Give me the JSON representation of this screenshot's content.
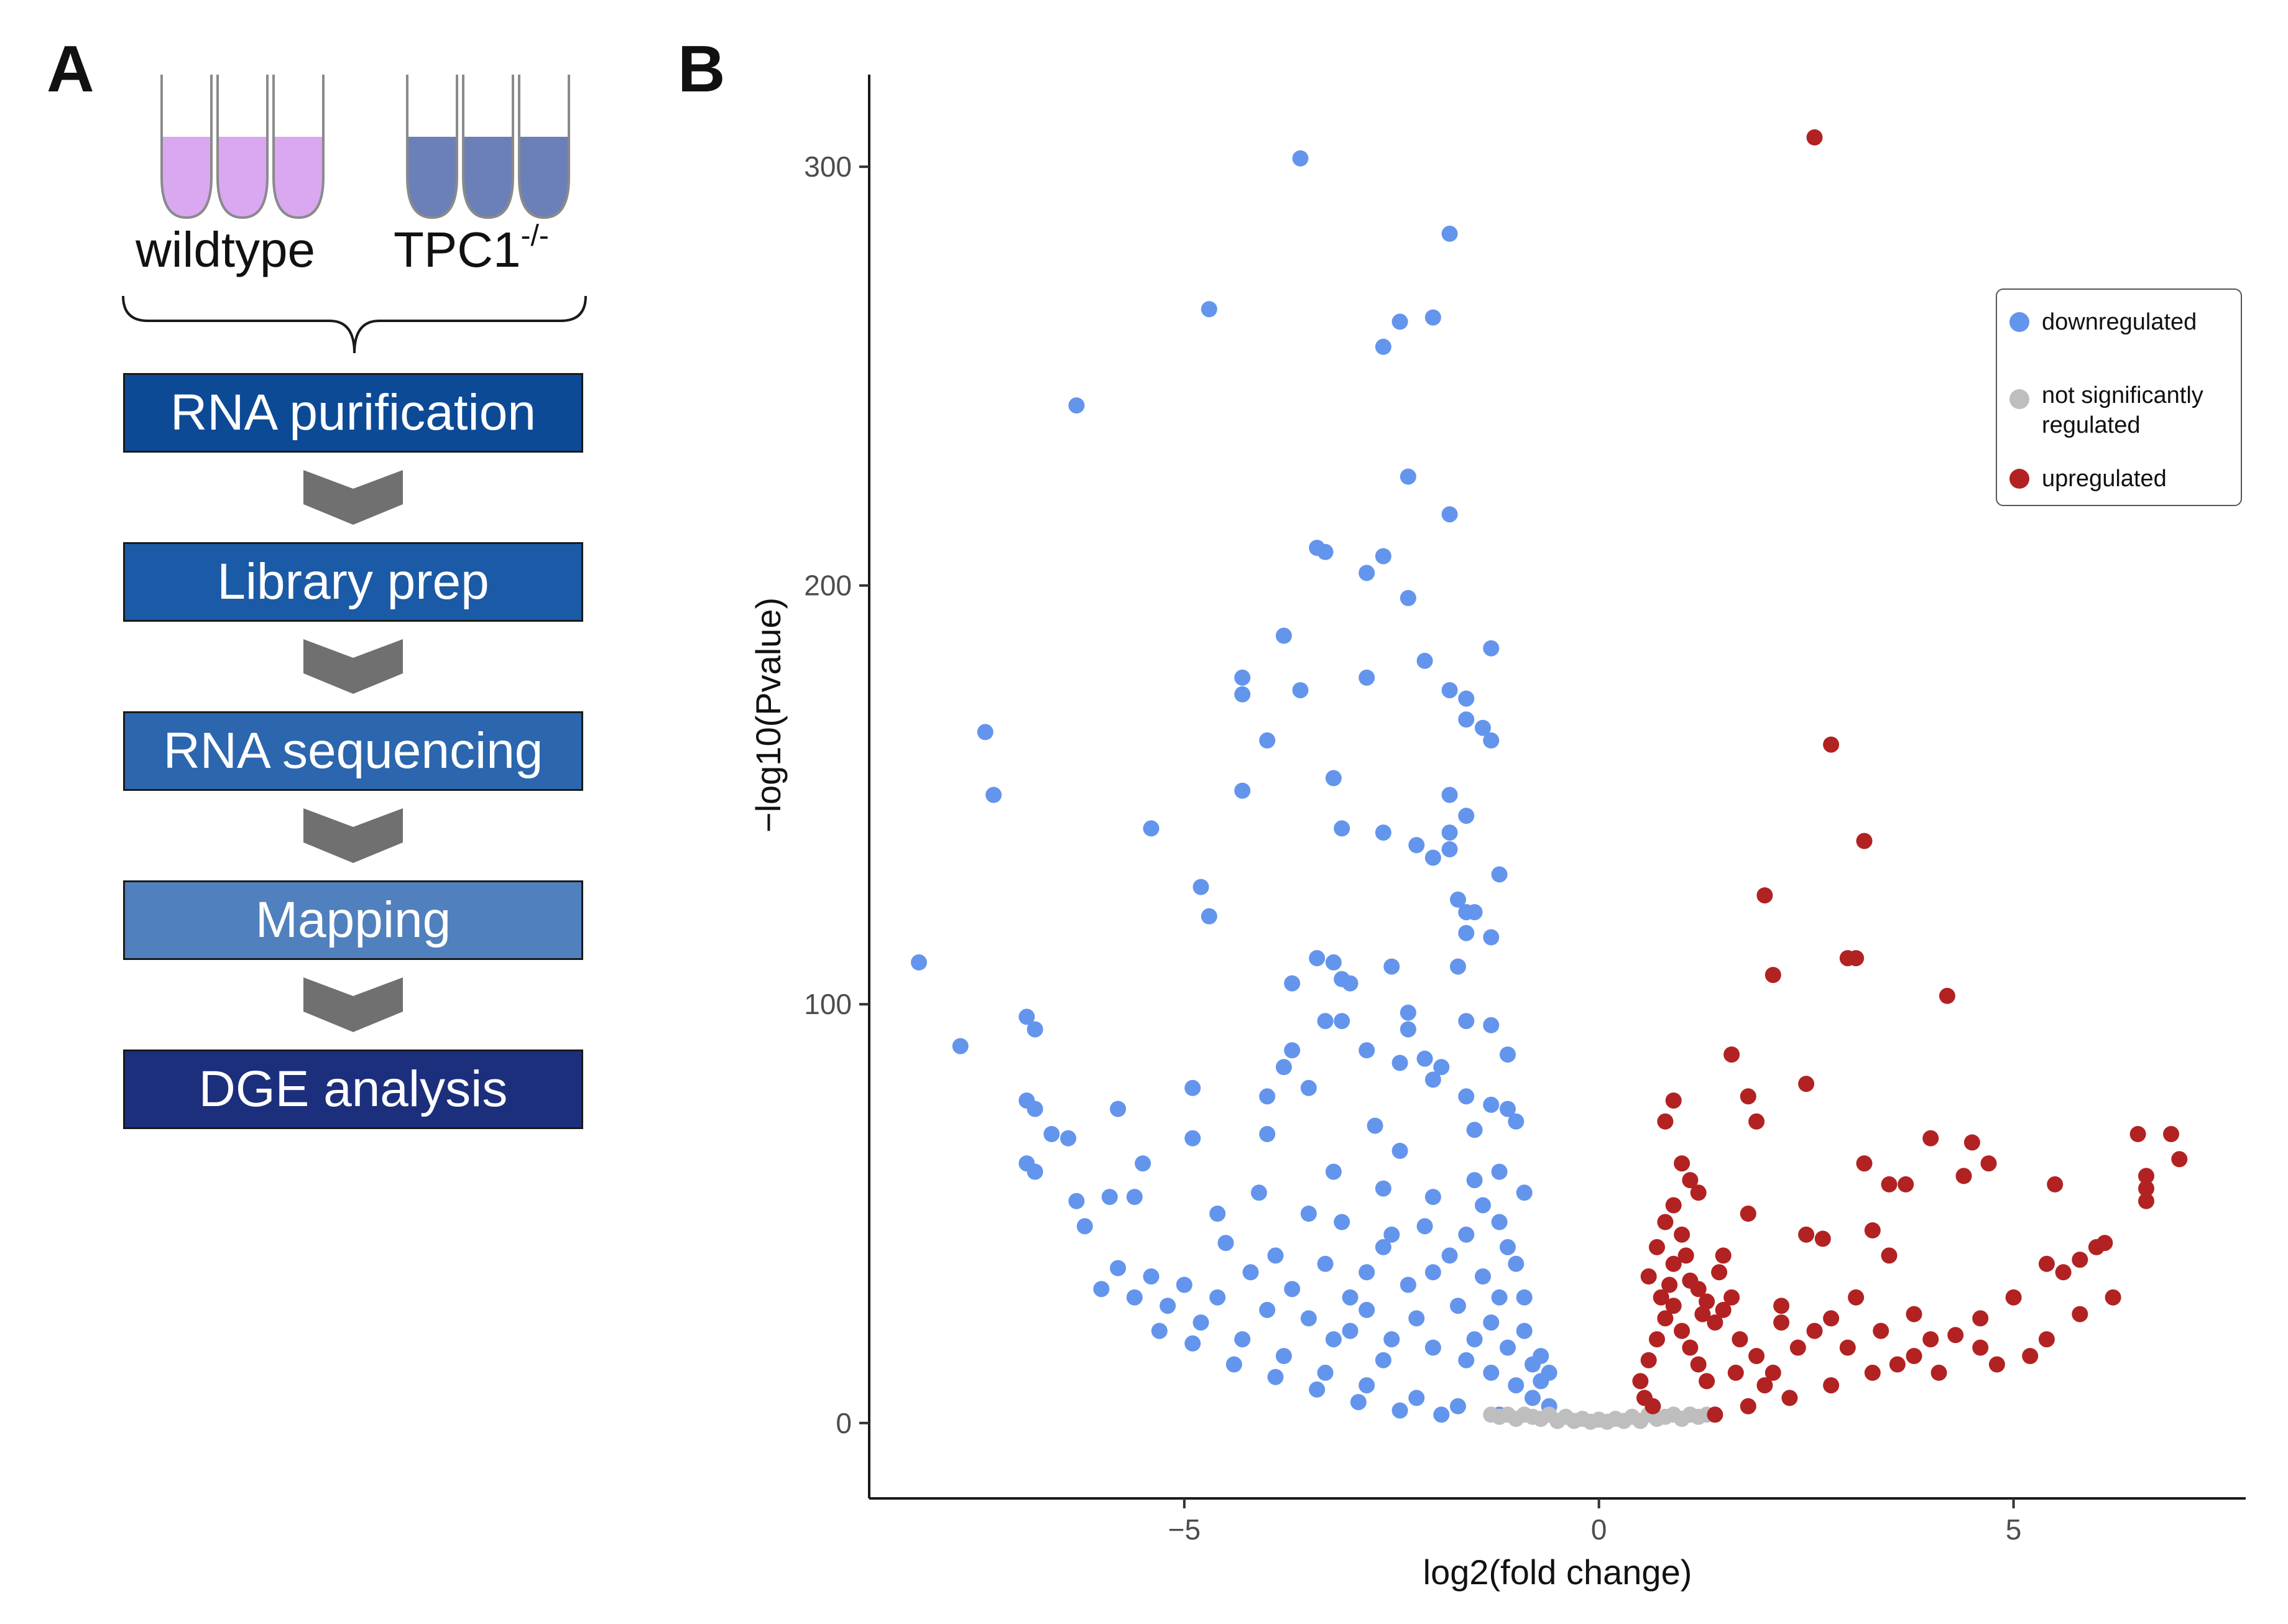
{
  "panel_a": {
    "letter": "A",
    "groups": [
      {
        "label": "wildtype",
        "color": "#d9a8f0"
      },
      {
        "label": "TPC1",
        "superscript": "-/-",
        "color": "#6b80b8"
      }
    ],
    "steps": [
      {
        "label": "RNA purification",
        "color": "#0d4a96"
      },
      {
        "label": "Library prep",
        "color": "#1b5aa6"
      },
      {
        "label": "RNA sequencing",
        "color": "#2b66ae"
      },
      {
        "label": "Mapping",
        "color": "#5080bd"
      },
      {
        "label": "DGE analysis",
        "color": "#1c2f7c"
      }
    ],
    "arrow_color": "#707070"
  },
  "panel_b": {
    "letter": "B",
    "legend": [
      {
        "label": "downregulated",
        "color": "#6495ed"
      },
      {
        "label": "not significantly regulated",
        "line1": "not significantly",
        "line2": "regulated",
        "color": "#bebebe"
      },
      {
        "label": "upregulated",
        "color": "#b22222"
      }
    ]
  },
  "chart_data": {
    "type": "scatter",
    "subtype": "volcano",
    "xlabel": "log2(fold change)",
    "ylabel": "−log10(Pvalue)",
    "xlim": [
      -8.8,
      7.8
    ],
    "ylim": [
      -18,
      322
    ],
    "xticks": [
      -5,
      0,
      5
    ],
    "xtick_labels": [
      "−5",
      "0",
      "5"
    ],
    "yticks": [
      0,
      100,
      200,
      300
    ],
    "ytick_labels": [
      "0",
      "100",
      "200",
      "300"
    ],
    "grid": false,
    "legend_position": "top-right",
    "series": [
      {
        "name": "downregulated",
        "color": "#6495ed",
        "points": [
          [
            -3.6,
            302
          ],
          [
            -1.8,
            284
          ],
          [
            -4.7,
            266
          ],
          [
            -2.4,
            263
          ],
          [
            -2.0,
            264
          ],
          [
            -2.6,
            257
          ],
          [
            -6.3,
            243
          ],
          [
            -2.3,
            226
          ],
          [
            -1.8,
            217
          ],
          [
            -3.3,
            208
          ],
          [
            -3.4,
            209
          ],
          [
            -2.6,
            207
          ],
          [
            -2.8,
            203
          ],
          [
            -2.3,
            197
          ],
          [
            -3.8,
            188
          ],
          [
            -1.3,
            185
          ],
          [
            -2.1,
            182
          ],
          [
            -4.3,
            178
          ],
          [
            -4.3,
            174
          ],
          [
            -3.6,
            175
          ],
          [
            -2.8,
            178
          ],
          [
            -1.6,
            173
          ],
          [
            -1.8,
            175
          ],
          [
            -1.6,
            168
          ],
          [
            -1.4,
            166
          ],
          [
            -1.3,
            163
          ],
          [
            -7.4,
            165
          ],
          [
            -4.0,
            163
          ],
          [
            -3.2,
            154
          ],
          [
            -7.3,
            150
          ],
          [
            -4.3,
            151
          ],
          [
            -1.8,
            150
          ],
          [
            -1.6,
            145
          ],
          [
            -5.4,
            142
          ],
          [
            -3.1,
            142
          ],
          [
            -2.6,
            141
          ],
          [
            -2.2,
            138
          ],
          [
            -2.0,
            135
          ],
          [
            -1.8,
            137
          ],
          [
            -1.8,
            141
          ],
          [
            -1.2,
            131
          ],
          [
            -4.8,
            128
          ],
          [
            -1.7,
            125
          ],
          [
            -1.6,
            122
          ],
          [
            -1.5,
            122
          ],
          [
            -4.7,
            121
          ],
          [
            -1.6,
            117
          ],
          [
            -1.3,
            116
          ],
          [
            -8.2,
            110
          ],
          [
            -3.4,
            111
          ],
          [
            -3.2,
            110
          ],
          [
            -2.5,
            109
          ],
          [
            -1.7,
            109
          ],
          [
            -3.7,
            105
          ],
          [
            -3.0,
            105
          ],
          [
            -3.1,
            106
          ],
          [
            -2.3,
            98
          ],
          [
            -2.3,
            94
          ],
          [
            -1.6,
            96
          ],
          [
            -1.3,
            95
          ],
          [
            -6.9,
            97
          ],
          [
            -6.8,
            94
          ],
          [
            -3.1,
            96
          ],
          [
            -3.3,
            96
          ],
          [
            -7.7,
            90
          ],
          [
            -3.7,
            89
          ],
          [
            -2.8,
            89
          ],
          [
            -2.4,
            86
          ],
          [
            -2.1,
            87
          ],
          [
            -3.8,
            85
          ],
          [
            -3.5,
            80
          ],
          [
            -4.9,
            80
          ],
          [
            -4.0,
            78
          ],
          [
            -2.0,
            82
          ],
          [
            -1.9,
            85
          ],
          [
            -1.1,
            88
          ],
          [
            -1.6,
            78
          ],
          [
            -5.8,
            75
          ],
          [
            -6.9,
            77
          ],
          [
            -6.8,
            75
          ],
          [
            -6.6,
            69
          ],
          [
            -6.4,
            68
          ],
          [
            -4.0,
            69
          ],
          [
            -4.9,
            68
          ],
          [
            -2.7,
            71
          ],
          [
            -2.4,
            65
          ],
          [
            -1.3,
            76
          ],
          [
            -1.1,
            75
          ],
          [
            -1.0,
            72
          ],
          [
            -1.5,
            70
          ],
          [
            -6.9,
            62
          ],
          [
            -6.8,
            60
          ],
          [
            -5.5,
            62
          ],
          [
            -5.9,
            54
          ],
          [
            -5.6,
            54
          ],
          [
            -6.3,
            53
          ],
          [
            -3.2,
            60
          ],
          [
            -2.6,
            56
          ],
          [
            -2.0,
            54
          ],
          [
            -1.5,
            58
          ],
          [
            -1.2,
            60
          ],
          [
            -0.9,
            55
          ],
          [
            -4.1,
            55
          ],
          [
            -4.6,
            50
          ],
          [
            -6.2,
            47
          ],
          [
            -5.8,
            37
          ],
          [
            -5.4,
            35
          ],
          [
            -3.5,
            50
          ],
          [
            -3.1,
            48
          ],
          [
            -2.1,
            47
          ],
          [
            -2.5,
            45
          ],
          [
            -1.6,
            45
          ],
          [
            -1.2,
            48
          ],
          [
            -4.5,
            43
          ],
          [
            -3.9,
            40
          ],
          [
            -3.3,
            38
          ],
          [
            -2.8,
            36
          ],
          [
            -2.3,
            33
          ],
          [
            -5.0,
            33
          ],
          [
            -4.6,
            30
          ],
          [
            -4.0,
            27
          ],
          [
            -3.5,
            25
          ],
          [
            -3.0,
            22
          ],
          [
            -2.5,
            20
          ],
          [
            -2.0,
            18
          ],
          [
            -1.6,
            15
          ],
          [
            -1.3,
            12
          ],
          [
            -1.0,
            9
          ],
          [
            -0.8,
            6
          ],
          [
            -0.6,
            4
          ],
          [
            -5.2,
            28
          ],
          [
            -4.8,
            24
          ],
          [
            -4.3,
            20
          ],
          [
            -3.8,
            16
          ],
          [
            -3.3,
            12
          ],
          [
            -2.8,
            9
          ],
          [
            -2.2,
            6
          ],
          [
            -1.7,
            4
          ],
          [
            -1.2,
            2
          ],
          [
            -6.0,
            32
          ],
          [
            -5.6,
            30
          ],
          [
            -5.3,
            22
          ],
          [
            -4.9,
            19
          ],
          [
            -4.4,
            14
          ],
          [
            -3.9,
            11
          ],
          [
            -3.4,
            8
          ],
          [
            -2.9,
            5
          ],
          [
            -2.4,
            3
          ],
          [
            -1.9,
            2
          ],
          [
            -1.5,
            20
          ],
          [
            -1.1,
            18
          ],
          [
            -0.9,
            22
          ],
          [
            -1.2,
            30
          ],
          [
            -0.8,
            14
          ],
          [
            -0.7,
            10
          ],
          [
            -1.4,
            35
          ],
          [
            -1.0,
            38
          ],
          [
            -1.8,
            40
          ],
          [
            -2.6,
            42
          ],
          [
            -3.0,
            30
          ],
          [
            -3.7,
            32
          ],
          [
            -4.2,
            36
          ],
          [
            -2.2,
            25
          ],
          [
            -2.6,
            15
          ],
          [
            -3.2,
            20
          ],
          [
            -1.7,
            28
          ],
          [
            -1.3,
            24
          ],
          [
            -0.7,
            16
          ],
          [
            -0.6,
            12
          ],
          [
            -0.9,
            30
          ],
          [
            -1.1,
            42
          ],
          [
            -1.4,
            52
          ],
          [
            -2.0,
            36
          ],
          [
            -2.8,
            27
          ]
        ]
      },
      {
        "name": "not significantly regulated",
        "color": "#bebebe",
        "points": [
          [
            -1.3,
            2
          ],
          [
            -1.2,
            1.5
          ],
          [
            -1.1,
            2
          ],
          [
            -1.0,
            1
          ],
          [
            -0.9,
            2
          ],
          [
            -0.8,
            1.5
          ],
          [
            -0.7,
            1
          ],
          [
            -0.6,
            2
          ],
          [
            -0.5,
            0.5
          ],
          [
            -0.4,
            1.5
          ],
          [
            -0.3,
            0.5
          ],
          [
            -0.2,
            1
          ],
          [
            -0.1,
            0.3
          ],
          [
            0.0,
            0.8
          ],
          [
            0.1,
            0.3
          ],
          [
            0.2,
            1
          ],
          [
            0.3,
            0.5
          ],
          [
            0.4,
            1.5
          ],
          [
            0.5,
            0.5
          ],
          [
            0.6,
            2
          ],
          [
            0.7,
            1
          ],
          [
            0.8,
            1.5
          ],
          [
            0.9,
            2
          ],
          [
            1.0,
            1
          ],
          [
            1.1,
            2
          ],
          [
            1.2,
            1.5
          ],
          [
            1.3,
            2
          ]
        ]
      },
      {
        "name": "upregulated",
        "color": "#b22222",
        "points": [
          [
            2.6,
            307
          ],
          [
            2.8,
            162
          ],
          [
            3.2,
            139
          ],
          [
            2.0,
            126
          ],
          [
            3.0,
            111
          ],
          [
            3.1,
            111
          ],
          [
            2.1,
            107
          ],
          [
            4.2,
            102
          ],
          [
            1.6,
            88
          ],
          [
            2.5,
            81
          ],
          [
            0.9,
            77
          ],
          [
            1.8,
            78
          ],
          [
            0.8,
            72
          ],
          [
            1.9,
            72
          ],
          [
            4.0,
            68
          ],
          [
            4.5,
            67
          ],
          [
            6.5,
            69
          ],
          [
            6.9,
            69
          ],
          [
            1.0,
            62
          ],
          [
            3.2,
            62
          ],
          [
            6.6,
            59
          ],
          [
            6.6,
            56
          ],
          [
            7.0,
            63
          ],
          [
            4.7,
            62
          ],
          [
            1.1,
            58
          ],
          [
            3.5,
            57
          ],
          [
            3.7,
            57
          ],
          [
            4.4,
            59
          ],
          [
            5.5,
            57
          ],
          [
            6.6,
            53
          ],
          [
            1.2,
            55
          ],
          [
            1.8,
            50
          ],
          [
            2.5,
            45
          ],
          [
            3.3,
            46
          ],
          [
            2.7,
            44
          ],
          [
            6.0,
            42
          ],
          [
            6.1,
            43
          ],
          [
            5.8,
            39
          ],
          [
            0.8,
            48
          ],
          [
            1.0,
            45
          ],
          [
            1.5,
            40
          ],
          [
            3.5,
            40
          ],
          [
            5.4,
            38
          ],
          [
            5.6,
            36
          ],
          [
            0.6,
            35
          ],
          [
            0.9,
            38
          ],
          [
            1.2,
            32
          ],
          [
            1.6,
            30
          ],
          [
            2.2,
            28
          ],
          [
            2.8,
            25
          ],
          [
            3.4,
            22
          ],
          [
            4.0,
            20
          ],
          [
            4.6,
            18
          ],
          [
            5.2,
            16
          ],
          [
            5.0,
            30
          ],
          [
            4.6,
            25
          ],
          [
            4.3,
            21
          ],
          [
            3.8,
            16
          ],
          [
            3.3,
            12
          ],
          [
            2.8,
            9
          ],
          [
            2.3,
            6
          ],
          [
            1.8,
            4
          ],
          [
            1.4,
            2
          ],
          [
            0.5,
            10
          ],
          [
            0.6,
            15
          ],
          [
            0.7,
            20
          ],
          [
            0.8,
            25
          ],
          [
            0.9,
            28
          ],
          [
            1.0,
            22
          ],
          [
            1.1,
            18
          ],
          [
            1.2,
            14
          ],
          [
            1.3,
            10
          ],
          [
            1.4,
            24
          ],
          [
            1.5,
            27
          ],
          [
            1.7,
            20
          ],
          [
            1.9,
            16
          ],
          [
            2.1,
            12
          ],
          [
            2.4,
            18
          ],
          [
            2.6,
            22
          ],
          [
            3.0,
            18
          ],
          [
            3.6,
            14
          ],
          [
            4.1,
            12
          ],
          [
            4.8,
            14
          ],
          [
            5.4,
            20
          ],
          [
            5.8,
            26
          ],
          [
            6.2,
            30
          ],
          [
            0.7,
            42
          ],
          [
            0.9,
            52
          ],
          [
            1.1,
            34
          ],
          [
            1.3,
            29
          ],
          [
            0.55,
            6
          ],
          [
            0.65,
            4
          ],
          [
            0.75,
            30
          ],
          [
            0.85,
            33
          ],
          [
            1.05,
            40
          ],
          [
            1.25,
            26
          ],
          [
            1.45,
            36
          ],
          [
            1.65,
            12
          ],
          [
            2.0,
            9
          ],
          [
            2.2,
            24
          ],
          [
            3.1,
            30
          ],
          [
            3.8,
            26
          ]
        ]
      }
    ]
  }
}
